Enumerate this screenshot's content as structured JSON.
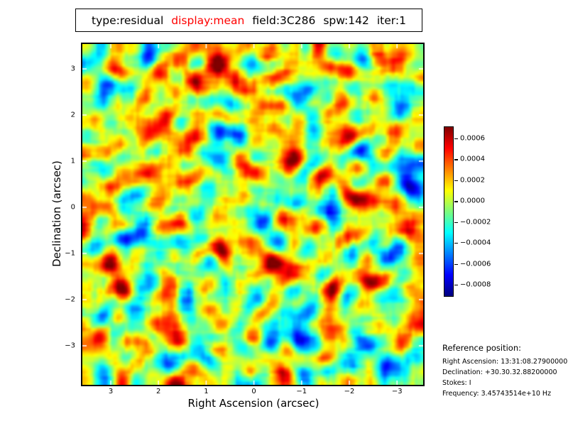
{
  "title": {
    "segments": [
      {
        "text": "type:residual",
        "color": "#000000"
      },
      {
        "text": "display:mean",
        "color": "#ff0000"
      },
      {
        "text": "field:3C286",
        "color": "#000000"
      },
      {
        "text": "spw:142",
        "color": "#000000"
      },
      {
        "text": "iter:1",
        "color": "#000000"
      }
    ]
  },
  "chart_data": {
    "type": "heatmap",
    "title": "type:residual display:mean field:3C286 spw:142 iter:1",
    "description": "Smooth random interferometric residual noise map rendered with a jet colormap; green background near 0 with orange/red positive blobs and cyan/blue negative blobs",
    "xlabel": "Right Ascension (arcsec)",
    "ylabel": "Declination (arcsec)",
    "x_tick_labels": [
      "3",
      "2",
      "1",
      "0",
      "−1",
      "−2",
      "−3"
    ],
    "y_tick_labels": [
      "3",
      "2",
      "1",
      "0",
      "−1",
      "−2",
      "−3"
    ],
    "x_tick_values": [
      3,
      2,
      1,
      0,
      -1,
      -2,
      -3
    ],
    "y_tick_values": [
      3,
      2,
      1,
      0,
      -1,
      -2,
      -3
    ],
    "x_range": [
      3.6,
      -3.55
    ],
    "y_range": [
      -3.8,
      3.55
    ],
    "grid": false,
    "colormap": "jet",
    "colorbar": {
      "position": "right",
      "tick_labels": [
        "0.0006",
        "0.0004",
        "0.0002",
        "0.0000",
        "−0.0002",
        "−0.0004",
        "−0.0006",
        "−0.0008"
      ],
      "tick_values": [
        0.0006,
        0.0004,
        0.0002,
        0.0,
        -0.0002,
        -0.0004,
        -0.0006,
        -0.0008
      ],
      "vmin": -0.00092,
      "vmax": 0.00071
    },
    "value_range_approx": [
      -0.0009,
      0.0007
    ]
  },
  "reference": {
    "heading": "Reference position:",
    "lines": [
      "Right Ascension: 13:31:08.27900000",
      "Declination: +30.30.32.88200000",
      "Stokes: I",
      "Frequency: 3.45743514e+10 Hz"
    ]
  },
  "colors": {
    "highlight": "#ff0000",
    "text": "#000000",
    "background": "#ffffff",
    "plot_border": "#000000"
  }
}
